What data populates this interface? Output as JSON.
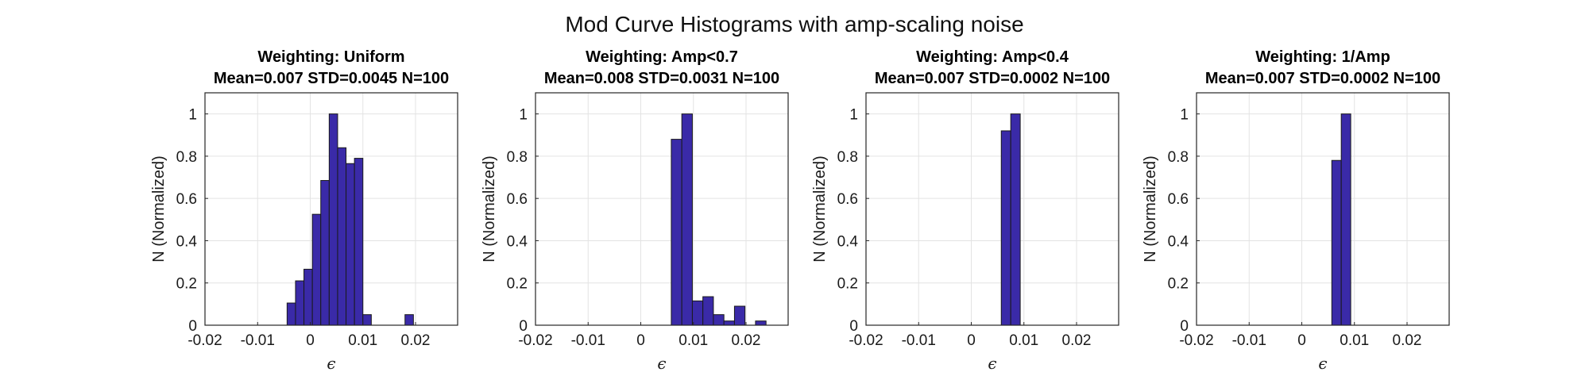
{
  "figure": {
    "title": "Mod Curve Histograms with amp-scaling noise"
  },
  "style": {
    "bar_fill": "#3a2aa8",
    "bar_edge": "#1a1a1a",
    "grid_color": "#e3e3e3",
    "axes_color": "#262626"
  },
  "chart_data": [
    {
      "type": "bar",
      "title": "Weighting: Uniform",
      "subtitle": "Mean=0.007 STD=0.0045 N=100",
      "xlabel": "ϵ",
      "ylabel": "N (Normalized)",
      "xlim": [
        -0.02,
        0.028
      ],
      "ylim": [
        0,
        1.1
      ],
      "xticks": [
        -0.02,
        -0.01,
        0,
        0.01,
        0.02
      ],
      "xtick_labels": [
        "-0.02",
        "-0.01",
        "0",
        "0.01",
        "0.02"
      ],
      "yticks": [
        0,
        0.2,
        0.4,
        0.6,
        0.8,
        1
      ],
      "ytick_labels": [
        "0",
        "0.2",
        "0.4",
        "0.6",
        "0.8",
        "1"
      ],
      "grid": true,
      "bin_width": 0.0016,
      "bin_centers": [
        -0.0036,
        -0.002,
        -0.0004,
        0.0012,
        0.0028,
        0.0044,
        0.006,
        0.0076,
        0.0092,
        0.0108,
        0.0124,
        0.014,
        0.0156,
        0.0172,
        0.0188,
        0.0204
      ],
      "values": [
        0.105,
        0.21,
        0.265,
        0.525,
        0.685,
        1.0,
        0.84,
        0.765,
        0.79,
        0.05,
        0,
        0,
        0,
        0,
        0.05,
        0
      ]
    },
    {
      "type": "bar",
      "title": "Weighting: Amp<0.7",
      "subtitle": "Mean=0.008 STD=0.0031 N=100",
      "xlabel": "ϵ",
      "ylabel": "N (Normalized)",
      "xlim": [
        -0.02,
        0.028
      ],
      "ylim": [
        0,
        1.1
      ],
      "xticks": [
        -0.02,
        -0.01,
        0,
        0.01,
        0.02
      ],
      "xtick_labels": [
        "-0.02",
        "-0.01",
        "0",
        "0.01",
        "0.02"
      ],
      "yticks": [
        0,
        0.2,
        0.4,
        0.6,
        0.8,
        1
      ],
      "ytick_labels": [
        "0",
        "0.2",
        "0.4",
        "0.6",
        "0.8",
        "1"
      ],
      "grid": true,
      "bin_width": 0.002,
      "bin_centers": [
        0.0068,
        0.0088,
        0.0108,
        0.0128,
        0.0148,
        0.0168,
        0.0188,
        0.0208,
        0.0228
      ],
      "values": [
        0.88,
        1.0,
        0.115,
        0.135,
        0.05,
        0.02,
        0.09,
        0,
        0.02
      ]
    },
    {
      "type": "bar",
      "title": "Weighting: Amp<0.4",
      "subtitle": "Mean=0.007 STD=0.0002 N=100",
      "xlabel": "ϵ",
      "ylabel": "N (Normalized)",
      "xlim": [
        -0.02,
        0.028
      ],
      "ylim": [
        0,
        1.1
      ],
      "xticks": [
        -0.02,
        -0.01,
        0,
        0.01,
        0.02
      ],
      "xtick_labels": [
        "-0.02",
        "-0.01",
        "0",
        "0.01",
        "0.02"
      ],
      "yticks": [
        0,
        0.2,
        0.4,
        0.6,
        0.8,
        1
      ],
      "ytick_labels": [
        "0",
        "0.2",
        "0.4",
        "0.6",
        "0.8",
        "1"
      ],
      "grid": true,
      "bin_width": 0.0018,
      "bin_centers": [
        0.0066,
        0.0084
      ],
      "values": [
        0.92,
        1.0
      ]
    },
    {
      "type": "bar",
      "title": "Weighting: 1/Amp",
      "subtitle": "Mean=0.007 STD=0.0002 N=100",
      "xlabel": "ϵ",
      "ylabel": "N (Normalized)",
      "xlim": [
        -0.02,
        0.028
      ],
      "ylim": [
        0,
        1.1
      ],
      "xticks": [
        -0.02,
        -0.01,
        0,
        0.01,
        0.02
      ],
      "xtick_labels": [
        "-0.02",
        "-0.01",
        "0",
        "0.01",
        "0.02"
      ],
      "yticks": [
        0,
        0.2,
        0.4,
        0.6,
        0.8,
        1
      ],
      "ytick_labels": [
        "0",
        "0.2",
        "0.4",
        "0.6",
        "0.8",
        "1"
      ],
      "grid": true,
      "bin_width": 0.0018,
      "bin_centers": [
        0.0066,
        0.0084
      ],
      "values": [
        0.78,
        1.0
      ]
    }
  ]
}
